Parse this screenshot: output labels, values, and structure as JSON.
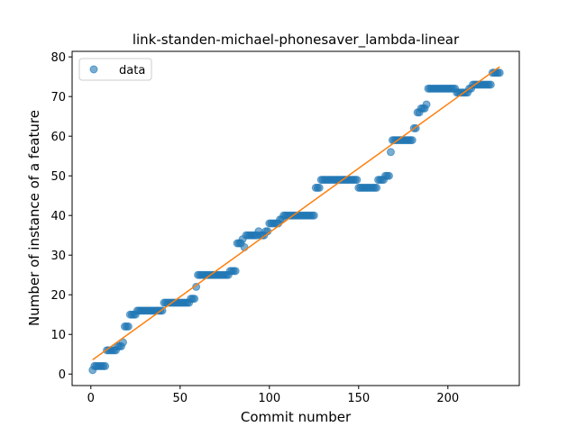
{
  "chart_data": {
    "type": "scatter",
    "title": "link-standen-michael-phonesaver_lambda-linear",
    "x_label": "Commit number",
    "y_label": "Number of instance of a feature",
    "xlim": [
      -10.5,
      240
    ],
    "ylim": [
      -2.9,
      81.4
    ],
    "xticks": [
      0,
      50,
      100,
      150,
      200
    ],
    "yticks": [
      0,
      10,
      20,
      30,
      40,
      50,
      60,
      70,
      80
    ],
    "grid": false,
    "legend": "upper left",
    "series": [
      {
        "name": "data",
        "color": "#1f77b4",
        "x": [
          1,
          2,
          3,
          4,
          5,
          6,
          7,
          8,
          9,
          10,
          11,
          12,
          13,
          14,
          15,
          16,
          17,
          18,
          19,
          20,
          21,
          22,
          23,
          24,
          25,
          26,
          27,
          28,
          29,
          30,
          31,
          32,
          33,
          34,
          35,
          36,
          37,
          38,
          39,
          40,
          41,
          42,
          43,
          44,
          45,
          46,
          47,
          48,
          49,
          50,
          51,
          52,
          53,
          54,
          55,
          56,
          57,
          58,
          59,
          60,
          61,
          62,
          63,
          64,
          65,
          66,
          67,
          68,
          69,
          70,
          71,
          72,
          73,
          74,
          75,
          76,
          77,
          78,
          79,
          80,
          81,
          82,
          83,
          84,
          85,
          86,
          87,
          88,
          89,
          90,
          91,
          92,
          93,
          94,
          95,
          96,
          97,
          98,
          99,
          100,
          101,
          102,
          103,
          104,
          105,
          106,
          107,
          108,
          109,
          110,
          111,
          112,
          113,
          114,
          115,
          116,
          117,
          118,
          119,
          120,
          121,
          122,
          123,
          124,
          125,
          126,
          127,
          128,
          129,
          130,
          131,
          132,
          133,
          134,
          135,
          136,
          137,
          138,
          139,
          140,
          141,
          142,
          143,
          144,
          145,
          146,
          147,
          148,
          149,
          150,
          151,
          152,
          153,
          154,
          155,
          156,
          157,
          158,
          159,
          160,
          161,
          162,
          163,
          164,
          165,
          166,
          167,
          168,
          169,
          170,
          171,
          172,
          173,
          174,
          175,
          176,
          177,
          178,
          179,
          180,
          181,
          182,
          183,
          184,
          185,
          186,
          187,
          188,
          189,
          190,
          191,
          192,
          193,
          194,
          195,
          196,
          197,
          198,
          199,
          200,
          201,
          202,
          203,
          204,
          205,
          206,
          207,
          208,
          209,
          210,
          211,
          212,
          213,
          214,
          215,
          216,
          217,
          218,
          219,
          220,
          221,
          222,
          223,
          224,
          225,
          226,
          227,
          228,
          229
        ],
        "values": [
          1,
          2,
          2,
          2,
          2,
          2,
          2,
          2,
          6,
          6,
          6,
          6,
          6,
          6,
          7,
          7,
          7,
          8,
          12,
          12,
          12,
          15,
          15,
          15,
          15,
          16,
          16,
          16,
          16,
          16,
          16,
          16,
          16,
          16,
          16,
          16,
          16,
          16,
          16,
          16,
          18,
          18,
          18,
          18,
          18,
          18,
          18,
          18,
          18,
          18,
          18,
          18,
          18,
          18,
          18,
          19,
          19,
          19,
          22,
          25,
          25,
          25,
          25,
          25,
          25,
          25,
          25,
          25,
          25,
          25,
          25,
          25,
          25,
          25,
          25,
          25,
          25,
          26,
          26,
          26,
          26,
          33,
          33,
          33,
          34,
          32,
          35,
          35,
          35,
          35,
          35,
          35,
          35,
          36,
          35,
          35,
          35,
          36,
          36,
          38,
          38,
          38,
          38,
          38,
          38,
          39,
          39,
          40,
          40,
          40,
          40,
          40,
          40,
          40,
          40,
          40,
          40,
          40,
          40,
          40,
          40,
          40,
          40,
          40,
          40,
          47,
          47,
          47,
          49,
          49,
          49,
          49,
          49,
          49,
          49,
          49,
          49,
          49,
          49,
          49,
          49,
          49,
          49,
          49,
          49,
          49,
          49,
          49,
          49,
          47,
          47,
          47,
          47,
          47,
          47,
          47,
          47,
          47,
          47,
          47,
          49,
          49,
          49,
          49,
          50,
          50,
          50,
          56,
          59,
          59,
          59,
          59,
          59,
          59,
          59,
          59,
          59,
          59,
          59,
          59,
          62,
          62,
          66,
          66,
          67,
          67,
          67,
          68,
          72,
          72,
          72,
          72,
          72,
          72,
          72,
          72,
          72,
          72,
          72,
          72,
          72,
          72,
          72,
          72,
          71,
          71,
          71,
          71,
          71,
          71,
          71,
          72,
          72,
          73,
          73,
          73,
          73,
          73,
          73,
          73,
          73,
          73,
          73,
          73,
          76,
          76,
          76,
          76,
          76
        ]
      },
      {
        "color": "#ff7f0e",
        "x": [
          1,
          229
        ],
        "values": [
          3.6,
          77.5
        ]
      }
    ]
  }
}
